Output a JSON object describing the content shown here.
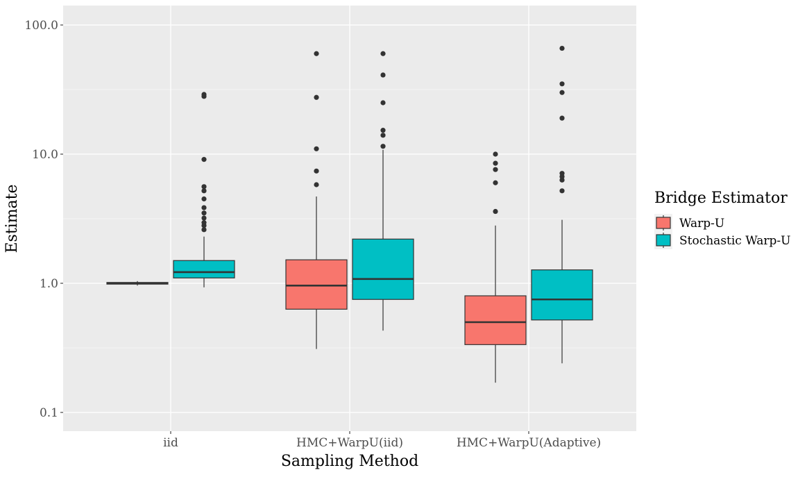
{
  "chart_data": {
    "type": "boxplot",
    "title": "",
    "xlabel": "Sampling Method",
    "ylabel": "Estimate",
    "y_scale": "log10",
    "ylim": [
      0.07,
      140
    ],
    "yticks": [
      {
        "value": 0.1,
        "label": "0.1"
      },
      {
        "value": 1,
        "label": "1.0"
      },
      {
        "value": 10,
        "label": "10.0"
      },
      {
        "value": 100,
        "label": "100.0"
      }
    ],
    "categories": [
      "iid",
      "HMC+WarpU(iid)",
      "HMC+WarpU(Adaptive)"
    ],
    "legend": {
      "title": "Bridge Estimator",
      "position": "right",
      "entries": [
        {
          "label": "Warp-U",
          "color": "#F8766D"
        },
        {
          "label": "Stochastic Warp-U",
          "color": "#00BFC4"
        }
      ]
    },
    "series": [
      {
        "name": "Warp-U",
        "color": "#F8766D",
        "boxes": [
          {
            "category": "iid",
            "min": 0.96,
            "q1": 0.985,
            "median": 1.0,
            "q3": 1.015,
            "max": 1.04,
            "outliers": []
          },
          {
            "category": "HMC+WarpU(iid)",
            "min": 0.31,
            "q1": 0.63,
            "median": 0.96,
            "q3": 1.52,
            "max": 4.7,
            "outliers": [
              5.8,
              7.4,
              11.0,
              27.5,
              60.0
            ]
          },
          {
            "category": "HMC+WarpU(Adaptive)",
            "min": 0.17,
            "q1": 0.335,
            "median": 0.5,
            "q3": 0.8,
            "max": 2.8,
            "outliers": [
              3.6,
              6.0,
              7.6,
              8.5,
              10.0
            ]
          }
        ]
      },
      {
        "name": "Stochastic Warp-U",
        "color": "#00BFC4",
        "boxes": [
          {
            "category": "iid",
            "min": 0.93,
            "q1": 1.1,
            "median": 1.22,
            "q3": 1.5,
            "max": 2.3,
            "outliers": [
              2.6,
              2.8,
              2.95,
              3.2,
              3.5,
              3.85,
              4.5,
              5.2,
              5.6,
              9.1,
              28.0,
              29.0
            ]
          },
          {
            "category": "HMC+WarpU(iid)",
            "min": 0.43,
            "q1": 0.75,
            "median": 1.08,
            "q3": 2.2,
            "max": 10.8,
            "outliers": [
              11.5,
              14.0,
              15.3,
              25.0,
              41.0,
              60.0
            ]
          },
          {
            "category": "HMC+WarpU(Adaptive)",
            "min": 0.24,
            "q1": 0.52,
            "median": 0.75,
            "q3": 1.27,
            "max": 3.1,
            "outliers": [
              5.2,
              6.3,
              6.7,
              7.1,
              19.0,
              30.0,
              35.0,
              66.0
            ]
          }
        ]
      }
    ]
  }
}
